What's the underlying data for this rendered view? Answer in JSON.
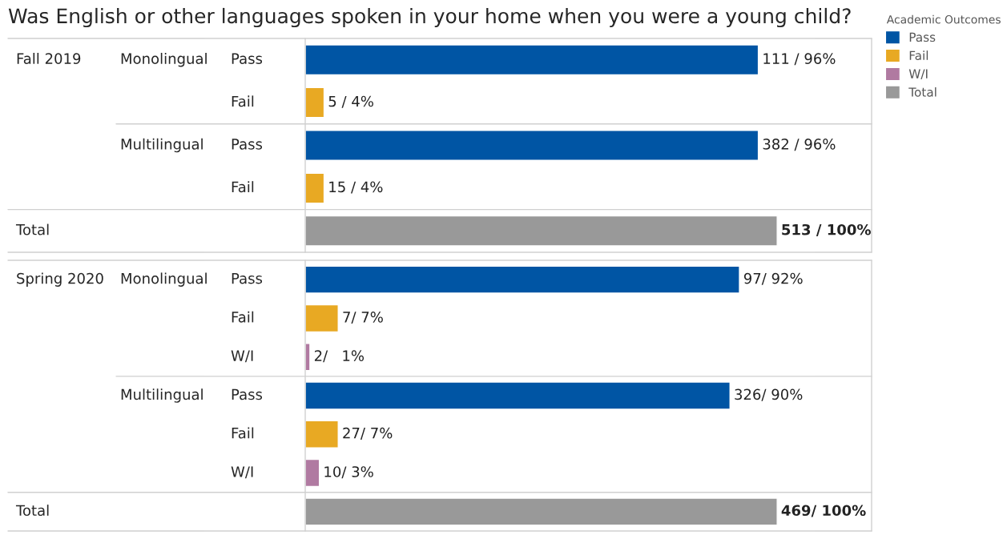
{
  "chart_data": [
    {
      "type": "bar",
      "orientation": "horizontal",
      "tick_labels": false,
      "title": "Was English or other languages spoken in your home when you were a young child?",
      "legend": "right",
      "legend_title": "Academic Outcomes",
      "categories": [
        "Pass",
        "Fail",
        "Pass",
        "Fail",
        null
      ],
      "annotations": [
        "Fall 2019",
        "Monolingual",
        "Multilingual",
        "Total"
      ],
      "series": [
        {
          "name": "Pass",
          "color": "#0055a4",
          "values": [
            96,
            null,
            96,
            null,
            null
          ],
          "value_labels": [
            "111 / 96%",
            null,
            "382 / 96%",
            null,
            null
          ]
        },
        {
          "name": "Fail",
          "color": "#e8a923",
          "values": [
            null,
            4,
            null,
            4,
            null
          ],
          "value_labels": [
            null,
            "5 / 4%",
            null,
            "15 / 4%",
            null
          ]
        },
        {
          "name": "W/I",
          "color": "#b07aa1",
          "values": [
            null,
            null,
            null,
            null,
            null
          ]
        },
        {
          "name": "Total",
          "color": "#999999",
          "values": [
            null,
            null,
            null,
            null,
            100
          ],
          "value_labels": [
            null,
            null,
            null,
            null,
            "513 / 100%"
          ]
        }
      ]
    },
    {
      "type": "bar",
      "orientation": "horizontal",
      "tick_labels": false,
      "categories": [
        "Pass",
        "Fail",
        "W/I",
        "Pass",
        "Fail",
        "W/I",
        null
      ],
      "annotations": [
        "Spring 2020",
        "Monolingual",
        "Multilingual",
        "Total"
      ],
      "series": [
        {
          "color": "#0055a4",
          "values": [
            92,
            null,
            null,
            90,
            null,
            null,
            null
          ],
          "value_labels": [
            "97/ 92%",
            null,
            null,
            "326/ 90%",
            null,
            null,
            null
          ]
        },
        {
          "color": "#e8a923",
          "values": [
            null,
            7,
            null,
            null,
            7,
            null,
            null
          ],
          "value_labels": [
            null,
            "7/ 7%",
            null,
            null,
            "27/ 7%",
            null,
            null
          ]
        },
        {
          "color": "#b07aa1",
          "values": [
            null,
            null,
            1,
            null,
            null,
            3,
            null
          ],
          "value_labels": [
            null,
            null,
            "2/   1%",
            null,
            null,
            "10/ 3%",
            null
          ]
        },
        {
          "color": "#999999",
          "values": [
            null,
            null,
            null,
            null,
            null,
            null,
            100
          ],
          "value_labels": [
            null,
            null,
            null,
            null,
            null,
            null,
            "469/ 100%"
          ]
        }
      ]
    }
  ]
}
